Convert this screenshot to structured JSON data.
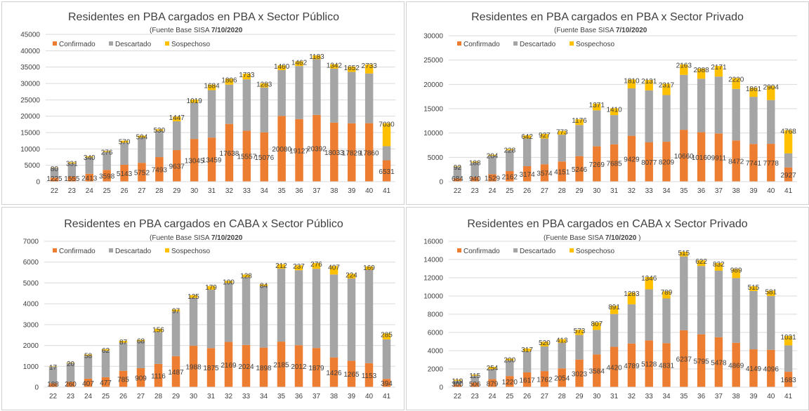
{
  "legend_labels": [
    "Confirmado",
    "Descartado",
    "Sospechoso"
  ],
  "colors": {
    "confirmado": "#ED7D31",
    "descartado": "#A5A5A5",
    "sospechoso": "#FFC000"
  },
  "chart_data": [
    {
      "type": "bar",
      "stacked": true,
      "title": "Residentes en PBA cargados en PBA x Sector Público",
      "subtitle": "(Fuente  Base SISA",
      "subtitle_date": "7/10/2020",
      "subtitle_end": "",
      "categories": [
        "22",
        "23",
        "24",
        "25",
        "26",
        "27",
        "28",
        "29",
        "30",
        "31",
        "32",
        "33",
        "34",
        "35",
        "36",
        "37",
        "38",
        "39",
        "40",
        "41"
      ],
      "ylim": [
        0,
        45000
      ],
      "yticks": [
        "0",
        "5000",
        "10000",
        "15000",
        "20000",
        "25000",
        "30000",
        "35000",
        "40000",
        "45000"
      ],
      "legend": "top-left",
      "series": [
        {
          "name": "Confirmado",
          "values": [
            1225,
            1555,
            2413,
            3598,
            5143,
            5752,
            7493,
            9637,
            13045,
            13459,
            17638,
            15557,
            15076,
            20080,
            19127,
            20392,
            18033,
            17829,
            17860,
            6531
          ],
          "labels": [
            "1225",
            "1555",
            "2413",
            "3598",
            "5143",
            "5752",
            "7493",
            "9637",
            "13045",
            "13459",
            "17638",
            "15557",
            "15076",
            "20080",
            "19127",
            "20392",
            "18033",
            "17829",
            "17860",
            "6531"
          ]
        },
        {
          "name": "Descartado",
          "values": [
            3000,
            4000,
            5000,
            5500,
            6800,
            7700,
            8000,
            8800,
            11000,
            14500,
            12000,
            15700,
            13700,
            14000,
            16200,
            17000,
            16500,
            15700,
            15200,
            4300
          ]
        },
        {
          "name": "Sospechoso",
          "values": [
            80,
            331,
            340,
            276,
            570,
            594,
            530,
            1447,
            1019,
            1684,
            1806,
            1733,
            1283,
            1460,
            1462,
            1183,
            1342,
            1652,
            2733,
            7030
          ],
          "labels": [
            "80",
            "331",
            "340",
            "276",
            "570",
            "594",
            "530",
            "1447",
            "1019",
            "1684",
            "1806",
            "1733",
            "1283",
            "1460",
            "1462",
            "1183",
            "1342",
            "1652",
            "2733",
            "7030"
          ]
        }
      ]
    },
    {
      "type": "bar",
      "stacked": true,
      "title": "Residentes en PBA cargados en PBA x Sector Privado",
      "subtitle": "(Fuente  Base SISA",
      "subtitle_date": "7/10/2020",
      "subtitle_end": "",
      "categories": [
        "22",
        "23",
        "24",
        "25",
        "26",
        "27",
        "28",
        "29",
        "30",
        "31",
        "32",
        "33",
        "34",
        "35",
        "36",
        "37",
        "38",
        "39",
        "40",
        "41"
      ],
      "ylim": [
        0,
        30000
      ],
      "yticks": [
        "0",
        "5000",
        "10000",
        "15000",
        "20000",
        "25000",
        "30000"
      ],
      "legend": "top-left",
      "series": [
        {
          "name": "Confirmado",
          "values": [
            684,
            940,
            1529,
            2162,
            3174,
            3574,
            4151,
            5246,
            7269,
            7685,
            9429,
            8077,
            8209,
            10660,
            10160,
            9911,
            8472,
            7741,
            7778,
            2927
          ],
          "labels": [
            "684",
            "940",
            "1529",
            "2162",
            "3174",
            "3574",
            "4151",
            "5246",
            "7269",
            "7685",
            "9429",
            "8077",
            "8209",
            "10660",
            "10160",
            "9911",
            "8472",
            "7741",
            "7778",
            "2927"
          ]
        },
        {
          "name": "Descartado",
          "values": [
            2400,
            3000,
            3800,
            4300,
            5700,
            5300,
            5500,
            6400,
            7400,
            6000,
            9760,
            10700,
            9600,
            11300,
            11000,
            11700,
            10600,
            9700,
            9000,
            2900
          ]
        },
        {
          "name": "Sospechoso",
          "values": [
            92,
            188,
            204,
            228,
            642,
            927,
            773,
            1176,
            1371,
            1410,
            1810,
            2131,
            2317,
            2163,
            2088,
            2171,
            2220,
            1861,
            2904,
            4768
          ],
          "labels": [
            "92",
            "188",
            "204",
            "228",
            "642",
            "927",
            "773",
            "1176",
            "1371",
            "1410",
            "1810",
            "2131",
            "2317",
            "2163",
            "2088",
            "2171",
            "2220",
            "1861",
            "2904",
            "4768"
          ]
        }
      ]
    },
    {
      "type": "bar",
      "stacked": true,
      "title": "Residentes en PBA cargados en CABA x Sector Público",
      "subtitle": "(Fuente  Base SISA",
      "subtitle_date": "7/10/2020",
      "subtitle_end": "",
      "categories": [
        "22",
        "23",
        "24",
        "25",
        "26",
        "27",
        "28",
        "29",
        "30",
        "31",
        "32",
        "33",
        "34",
        "35",
        "36",
        "37",
        "38",
        "39",
        "40",
        "41"
      ],
      "ylim": [
        0,
        7000
      ],
      "yticks": [
        "0",
        "1000",
        "2000",
        "3000",
        "4000",
        "5000",
        "6000",
        "7000"
      ],
      "legend": "top-left",
      "series": [
        {
          "name": "Confirmado",
          "values": [
            188,
            260,
            407,
            477,
            785,
            909,
            1116,
            1487,
            1988,
            1875,
            2169,
            2024,
            1898,
            2185,
            2012,
            1879,
            1426,
            1265,
            1153,
            394
          ],
          "labels": [
            "188",
            "260",
            "407",
            "477",
            "785",
            "909",
            "1116",
            "1487",
            "1988",
            "1875",
            "2169",
            "2024",
            "1898",
            "2185",
            "2012",
            "1879",
            "1426",
            "1265",
            "1153",
            "394"
          ]
        },
        {
          "name": "Descartado",
          "values": [
            800,
            900,
            1100,
            1280,
            1350,
            1290,
            1530,
            2140,
            2300,
            2800,
            2830,
            3250,
            2950,
            3500,
            3600,
            3800,
            3980,
            3950,
            4470,
            1900
          ]
        },
        {
          "name": "Sospechoso",
          "values": [
            17,
            20,
            58,
            62,
            87,
            68,
            156,
            97,
            125,
            179,
            100,
            128,
            84,
            212,
            237,
            276,
            407,
            224,
            169,
            285
          ],
          "labels": [
            "17",
            "20",
            "58",
            "62",
            "87",
            "68",
            "156",
            "97",
            "125",
            "179",
            "100",
            "128",
            "84",
            "212",
            "237",
            "276",
            "407",
            "224",
            "169",
            "285"
          ]
        }
      ]
    },
    {
      "type": "bar",
      "stacked": true,
      "title": "Residentes en PBA cargados en CABA x Sector Privado",
      "subtitle": "(Fuente  Base SISA",
      "subtitle_date": "7/10/2020",
      "subtitle_end": ")",
      "categories": [
        "22",
        "23",
        "24",
        "25",
        "26",
        "27",
        "28",
        "29",
        "30",
        "31",
        "32",
        "33",
        "34",
        "35",
        "36",
        "37",
        "38",
        "39",
        "40",
        "41"
      ],
      "ylim": [
        0,
        16000
      ],
      "yticks": [
        "0",
        "2000",
        "4000",
        "6000",
        "8000",
        "10000",
        "12000",
        "14000",
        "16000"
      ],
      "legend": "top-left",
      "series": [
        {
          "name": "Confirmado",
          "values": [
            300,
            506,
            879,
            1220,
            1617,
            1762,
            2054,
            3023,
            3584,
            4420,
            4789,
            5128,
            4831,
            6237,
            5795,
            5478,
            4869,
            4149,
            4096,
            1683
          ],
          "labels": [
            "300",
            "506",
            "879",
            "1220",
            "1617",
            "1762",
            "2054",
            "3023",
            "3584",
            "4420",
            "4789",
            "5128",
            "4831",
            "6237",
            "5795",
            "5478",
            "4869",
            "4149",
            "4096",
            "1683"
          ]
        },
        {
          "name": "Descartado",
          "values": [
            400,
            750,
            1100,
            1700,
            2300,
            2700,
            2800,
            2700,
            2700,
            3600,
            4300,
            5600,
            4900,
            8100,
            7500,
            7300,
            7100,
            6400,
            5900,
            2900
          ]
        },
        {
          "name": "Sospechoso",
          "values": [
            119,
            115,
            254,
            200,
            317,
            520,
            413,
            573,
            807,
            891,
            1283,
            1346,
            789,
            515,
            622,
            832,
            989,
            515,
            581,
            1031
          ],
          "labels": [
            "119",
            "115",
            "254",
            "200",
            "317",
            "520",
            "413",
            "573",
            "807",
            "891",
            "1283",
            "1346",
            "789",
            "515",
            "622",
            "832",
            "989",
            "515",
            "581",
            "1031"
          ]
        }
      ]
    }
  ]
}
